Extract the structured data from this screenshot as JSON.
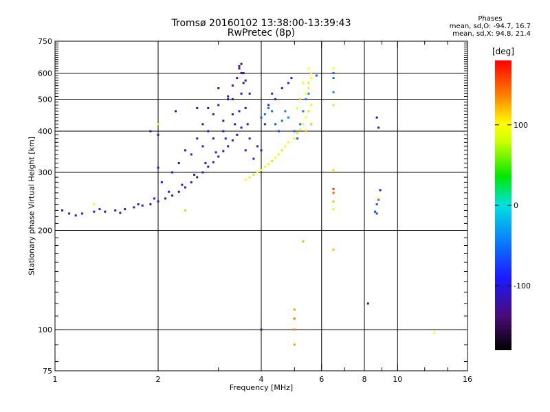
{
  "title": "Tromsø 20160102 13:38:00-13:39:43",
  "subtitle": "RwPretec (8p)",
  "phase_info": {
    "heading": "Phases",
    "o_line": "mean, sd,O: -94.7, 16.7",
    "x_line": "mean, sd,X:  94.8, 21.4"
  },
  "colorbar": {
    "unit": "[deg]",
    "ticks": [
      100,
      0,
      -100
    ],
    "range": [
      -180,
      180
    ]
  },
  "chart_data": {
    "type": "scatter",
    "title": "Tromsø 20160102 13:38:00-13:39:43",
    "subtitle": "RwPretec (8p)",
    "xlabel": "Frequency [MHz]",
    "ylabel": "Stationary phase Virtual Height [km]",
    "x_scale": "log",
    "y_scale": "log",
    "xlim": [
      1,
      16
    ],
    "ylim": [
      75,
      750
    ],
    "x_ticks": [
      1,
      2,
      4,
      6,
      8,
      10,
      16
    ],
    "y_ticks": [
      75,
      100,
      200,
      300,
      400,
      500,
      600,
      750
    ],
    "x_gridlines": [
      2,
      4,
      6,
      8,
      10
    ],
    "y_gridlines": [
      100,
      200,
      300,
      400,
      500,
      600
    ],
    "grid": true,
    "color_variable": "phase [deg]",
    "series": [
      {
        "points": [
          [
            1.05,
            230,
            -110
          ],
          [
            1.1,
            225,
            -105
          ],
          [
            1.2,
            225,
            -110
          ],
          [
            1.3,
            228,
            -100
          ],
          [
            1.4,
            228,
            -120
          ],
          [
            1.5,
            230,
            -105
          ],
          [
            1.6,
            232,
            -115
          ],
          [
            1.7,
            235,
            -110
          ],
          [
            1.8,
            238,
            -105
          ],
          [
            1.9,
            240,
            -115
          ],
          [
            2.0,
            245,
            -100
          ],
          [
            2.1,
            250,
            -110
          ],
          [
            2.2,
            255,
            -105
          ],
          [
            2.3,
            262,
            -115
          ],
          [
            2.4,
            270,
            -110
          ],
          [
            2.5,
            280,
            -100
          ],
          [
            2.6,
            290,
            -108
          ],
          [
            2.7,
            300,
            -112
          ],
          [
            2.8,
            312,
            -105
          ],
          [
            2.9,
            322,
            -115
          ],
          [
            3.0,
            335,
            -110
          ],
          [
            3.1,
            348,
            -105
          ],
          [
            3.2,
            360,
            -100
          ],
          [
            3.3,
            375,
            -110
          ],
          [
            3.4,
            390,
            -115
          ],
          [
            3.5,
            410,
            -105
          ],
          [
            1.15,
            222,
            -90
          ],
          [
            1.35,
            232,
            -95
          ],
          [
            1.55,
            226,
            -125
          ],
          [
            1.75,
            240,
            -95
          ],
          [
            1.95,
            250,
            -120
          ],
          [
            2.15,
            262,
            -95
          ],
          [
            2.35,
            275,
            -100
          ],
          [
            2.55,
            295,
            -95
          ],
          [
            2.75,
            320,
            -90
          ],
          [
            2.95,
            345,
            -95
          ],
          [
            3.15,
            380,
            -90
          ],
          [
            3.35,
            420,
            -95
          ],
          [
            3.45,
            460,
            -100
          ],
          [
            3.5,
            520,
            -110
          ],
          [
            3.55,
            600,
            -120
          ],
          [
            2.5,
            340,
            -110
          ],
          [
            2.6,
            380,
            -100
          ],
          [
            2.7,
            420,
            -112
          ],
          [
            2.8,
            400,
            -105
          ],
          [
            2.9,
            450,
            -108
          ],
          [
            3.0,
            480,
            -115
          ],
          [
            3.1,
            430,
            -110
          ],
          [
            3.2,
            500,
            -105
          ],
          [
            3.3,
            550,
            -120
          ],
          [
            3.4,
            580,
            -130
          ],
          [
            3.45,
            630,
            -125
          ],
          [
            3.5,
            640,
            -130
          ],
          [
            3.55,
            560,
            -125
          ],
          [
            3.6,
            470,
            -110
          ],
          [
            3.65,
            420,
            -115
          ],
          [
            3.7,
            520,
            -112
          ],
          [
            2.2,
            300,
            -100
          ],
          [
            2.3,
            320,
            -108
          ],
          [
            2.4,
            350,
            -110
          ],
          [
            2.7,
            360,
            -95
          ],
          [
            2.9,
            380,
            -100
          ],
          [
            3.1,
            400,
            -105
          ],
          [
            3.3,
            450,
            -110
          ],
          [
            3.6,
            350,
            -105
          ],
          [
            3.7,
            380,
            -110
          ],
          [
            3.8,
            330,
            -100
          ],
          [
            3.9,
            360,
            -105
          ],
          [
            4.0,
            350,
            -95
          ],
          [
            4.1,
            420,
            -90
          ],
          [
            4.2,
            480,
            -85
          ],
          [
            4.3,
            520,
            -80
          ],
          [
            4.4,
            500,
            -85
          ],
          [
            4.6,
            540,
            -90
          ],
          [
            4.8,
            560,
            -85
          ],
          [
            4.9,
            580,
            -95
          ],
          [
            1.9,
            400,
            -110
          ],
          [
            2.0,
            390,
            -115
          ],
          [
            2.0,
            310,
            -105
          ],
          [
            2.05,
            280,
            -95
          ],
          [
            2.25,
            460,
            -110
          ],
          [
            2.6,
            470,
            -105
          ],
          [
            2.8,
            470,
            -100
          ],
          [
            3.0,
            540,
            -108
          ],
          [
            3.2,
            510,
            -112
          ],
          [
            3.3,
            500,
            -115
          ],
          [
            3.45,
            620,
            -128
          ],
          [
            3.5,
            600,
            -130
          ],
          [
            3.6,
            570,
            -118
          ],
          [
            4.0,
            440,
            -60
          ],
          [
            4.1,
            450,
            -50
          ],
          [
            4.2,
            470,
            -45
          ],
          [
            4.3,
            460,
            -55
          ],
          [
            4.4,
            420,
            -60
          ],
          [
            4.5,
            400,
            -65
          ],
          [
            4.6,
            430,
            -50
          ],
          [
            4.7,
            460,
            -45
          ],
          [
            4.8,
            440,
            -40
          ],
          [
            5.0,
            400,
            -55
          ],
          [
            5.1,
            380,
            -60
          ],
          [
            5.2,
            420,
            -50
          ],
          [
            5.3,
            460,
            -45
          ],
          [
            5.4,
            500,
            -40
          ],
          [
            5.5,
            520,
            -35
          ],
          [
            5.6,
            600,
            -40
          ],
          [
            5.8,
            590,
            -60
          ],
          [
            6.5,
            580,
            -50
          ],
          [
            6.5,
            600,
            -55
          ],
          [
            6.5,
            525,
            -40
          ],
          [
            8.7,
            440,
            -110
          ],
          [
            8.8,
            410,
            -105
          ],
          [
            8.9,
            265,
            -110
          ],
          [
            8.8,
            248,
            -90
          ],
          [
            8.7,
            240,
            -60
          ],
          [
            8.6,
            228,
            -75
          ],
          [
            8.7,
            225,
            -65
          ],
          [
            4.0,
            100,
            -110
          ],
          [
            8.2,
            120,
            -130
          ]
        ]
      },
      {
        "points": [
          [
            3.6,
            285,
            100
          ],
          [
            3.7,
            290,
            105
          ],
          [
            3.8,
            295,
            110
          ],
          [
            3.9,
            300,
            100
          ],
          [
            4.0,
            305,
            95
          ],
          [
            4.1,
            312,
            100
          ],
          [
            4.2,
            318,
            105
          ],
          [
            4.3,
            325,
            110
          ],
          [
            4.4,
            332,
            100
          ],
          [
            4.5,
            340,
            105
          ],
          [
            4.6,
            350,
            110
          ],
          [
            4.7,
            360,
            100
          ],
          [
            4.8,
            370,
            100
          ],
          [
            5.0,
            380,
            105
          ],
          [
            5.1,
            395,
            110
          ],
          [
            5.2,
            405,
            100
          ],
          [
            5.3,
            420,
            105
          ],
          [
            5.4,
            440,
            100
          ],
          [
            5.5,
            460,
            110
          ],
          [
            5.6,
            480,
            105
          ],
          [
            5.4,
            520,
            100
          ],
          [
            5.5,
            540,
            105
          ],
          [
            5.5,
            560,
            110
          ],
          [
            5.6,
            580,
            100
          ],
          [
            5.6,
            600,
            95
          ],
          [
            5.5,
            620,
            100
          ],
          [
            5.3,
            560,
            105
          ],
          [
            5.2,
            500,
            115
          ],
          [
            5.4,
            400,
            120
          ],
          [
            5.6,
            420,
            118
          ],
          [
            5.1,
            470,
            95
          ],
          [
            1.3,
            240,
            100
          ],
          [
            2.4,
            230,
            115
          ],
          [
            2.0,
            420,
            90
          ],
          [
            6.5,
            620,
            100
          ],
          [
            6.5,
            480,
            110
          ],
          [
            6.5,
            305,
            110
          ],
          [
            6.5,
            245,
            120
          ],
          [
            6.5,
            232,
            105
          ],
          [
            6.5,
            175,
            120
          ],
          [
            5.3,
            185,
            125
          ],
          [
            5.0,
            115,
            130
          ],
          [
            5.0,
            108,
            145
          ],
          [
            5.0,
            100,
            135
          ],
          [
            5.0,
            90,
            130
          ],
          [
            6.5,
            267,
            160
          ],
          [
            6.5,
            260,
            150
          ],
          [
            8.8,
            250,
            110
          ],
          [
            12.8,
            98,
            100
          ]
        ]
      }
    ]
  }
}
